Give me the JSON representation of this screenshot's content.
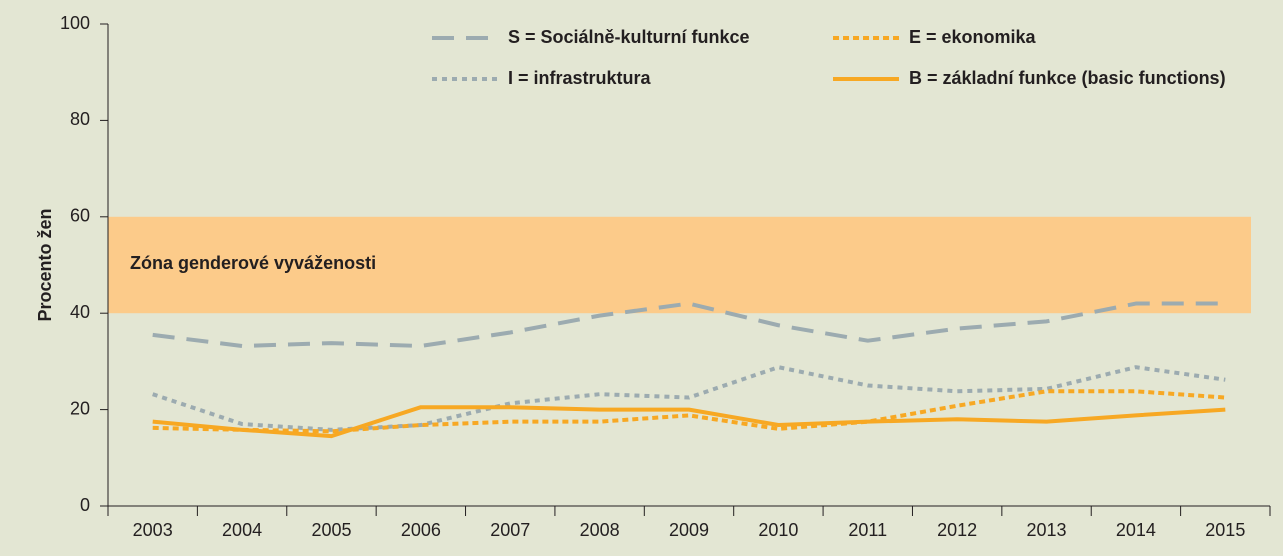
{
  "chart_data": {
    "type": "line",
    "y_label": "Procento žen",
    "categories": [
      "2003",
      "2004",
      "2005",
      "2006",
      "2007",
      "2008",
      "2009",
      "2010",
      "2011",
      "2012",
      "2013",
      "2014",
      "2015"
    ],
    "ylim": [
      0,
      100
    ],
    "yticks": [
      0,
      20,
      40,
      60,
      80,
      100
    ],
    "band": {
      "range": [
        40,
        60
      ],
      "label": "Zóna genderové vyváženosti",
      "color": "#fccb8a"
    },
    "series": [
      {
        "name": "S = Sociálně-kulturní funkce",
        "color": "#9cabb0",
        "dash": "22 12",
        "values": [
          35.5,
          33.2,
          33.8,
          33.2,
          36,
          39.5,
          42,
          37.5,
          34.3,
          36.8,
          38.3,
          42,
          42
        ]
      },
      {
        "name": "E = ekonomika",
        "color": "#f7a823",
        "dash": "6 4",
        "values": [
          16.2,
          15.8,
          15.5,
          16.8,
          17.5,
          17.5,
          18.8,
          16,
          17.5,
          20.8,
          23.8,
          23.8,
          22.5
        ]
      },
      {
        "name": "I = infrastruktura",
        "color": "#9cabb0",
        "dash": "5 5",
        "values": [
          23.2,
          17,
          15.8,
          16.8,
          21.3,
          23.2,
          22.5,
          28.8,
          25,
          23.8,
          24.3,
          28.8,
          26.2
        ]
      },
      {
        "name": "B = základní funkce (basic functions)",
        "color": "#f7a823",
        "dash": null,
        "values": [
          17.5,
          15.8,
          14.5,
          20.5,
          20.5,
          20,
          20,
          16.8,
          17.5,
          18,
          17.5,
          18.8,
          20
        ]
      }
    ]
  }
}
